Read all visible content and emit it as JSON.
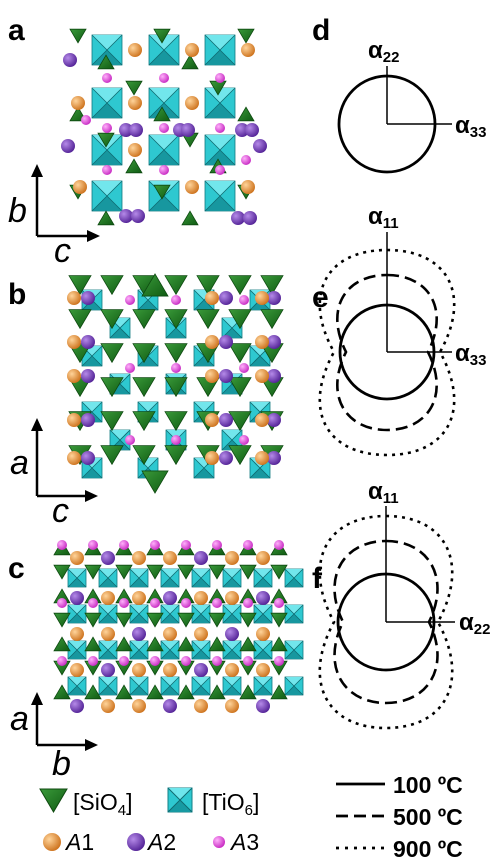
{
  "panels": {
    "a": {
      "label": "a",
      "axis_vertical": "b",
      "axis_horizontal": "c"
    },
    "b": {
      "label": "b",
      "axis_vertical": "a",
      "axis_horizontal": "c"
    },
    "c": {
      "label": "c",
      "axis_vertical": "a",
      "axis_horizontal": "b"
    },
    "d": {
      "label": "d",
      "axis_top": {
        "greek": "α",
        "sub": "22"
      },
      "axis_right": {
        "greek": "α",
        "sub": "33"
      }
    },
    "e": {
      "label": "e",
      "axis_top": {
        "greek": "α",
        "sub": "11"
      },
      "axis_right": {
        "greek": "α",
        "sub": "33"
      }
    },
    "f": {
      "label": "f",
      "axis_top": {
        "greek": "α",
        "sub": "11"
      },
      "axis_right": {
        "greek": "α",
        "sub": "22"
      }
    }
  },
  "structure_legend": {
    "sio4": {
      "open": "[SiO",
      "sub": "4",
      "close": "]"
    },
    "tio6": {
      "open": "[TiO",
      "sub": "6",
      "close": "]"
    },
    "sites": [
      {
        "italic": "A",
        "num": "1",
        "color": "#e08020"
      },
      {
        "italic": "A",
        "num": "2",
        "color": "#6a2bb5"
      },
      {
        "italic": "A",
        "num": "3",
        "color": "#e637e0"
      }
    ]
  },
  "temperature_legend": [
    {
      "label": "100 ºC",
      "style": "solid"
    },
    {
      "label": "500 ºC",
      "style": "dashed"
    },
    {
      "label": "900 ºC",
      "style": "dotted"
    }
  ],
  "colors": {
    "sio4": "#1e7a1e",
    "tio6": "#2ec8d0",
    "a1": "#e08020",
    "a2": "#6a2bb5",
    "a3": "#e637e0"
  }
}
